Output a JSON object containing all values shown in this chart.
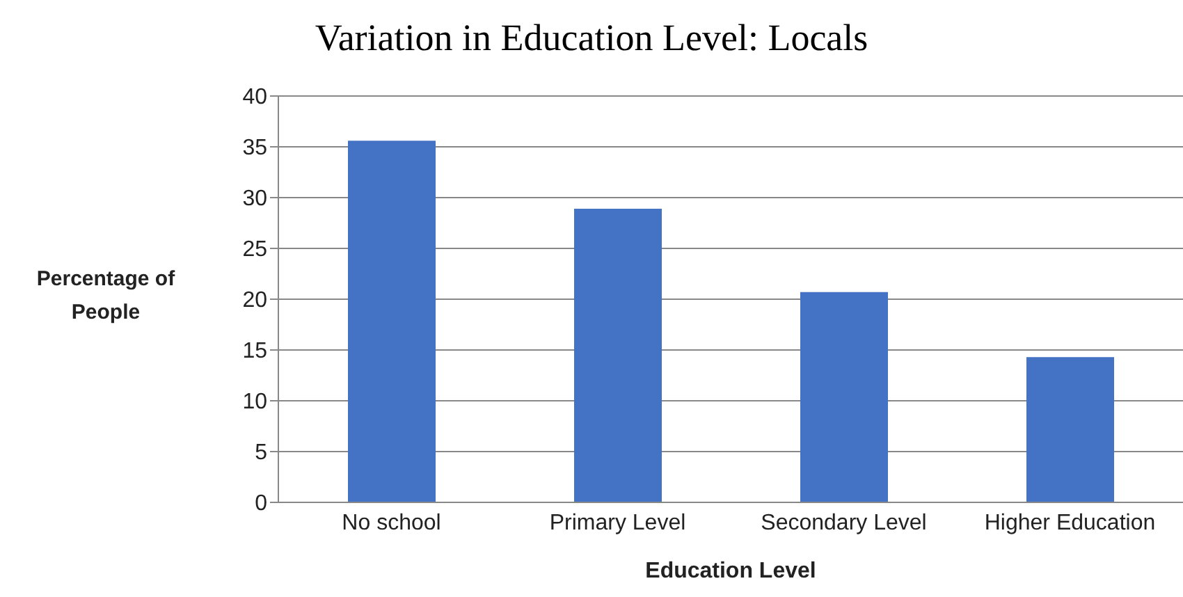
{
  "chart_data": {
    "type": "bar",
    "title": "Variation in Education Level: Locals",
    "xlabel": "Education Level",
    "ylabel": "Percentage of People",
    "categories": [
      "No school",
      "Primary Level",
      "Secondary Level",
      "Higher Education"
    ],
    "values": [
      35.6,
      28.9,
      20.7,
      14.3
    ],
    "color": "#4472c4",
    "ylim": [
      0,
      40
    ],
    "yticks": [
      0,
      5,
      10,
      15,
      20,
      25,
      30,
      35,
      40
    ],
    "grid": "y",
    "legend": false
  }
}
